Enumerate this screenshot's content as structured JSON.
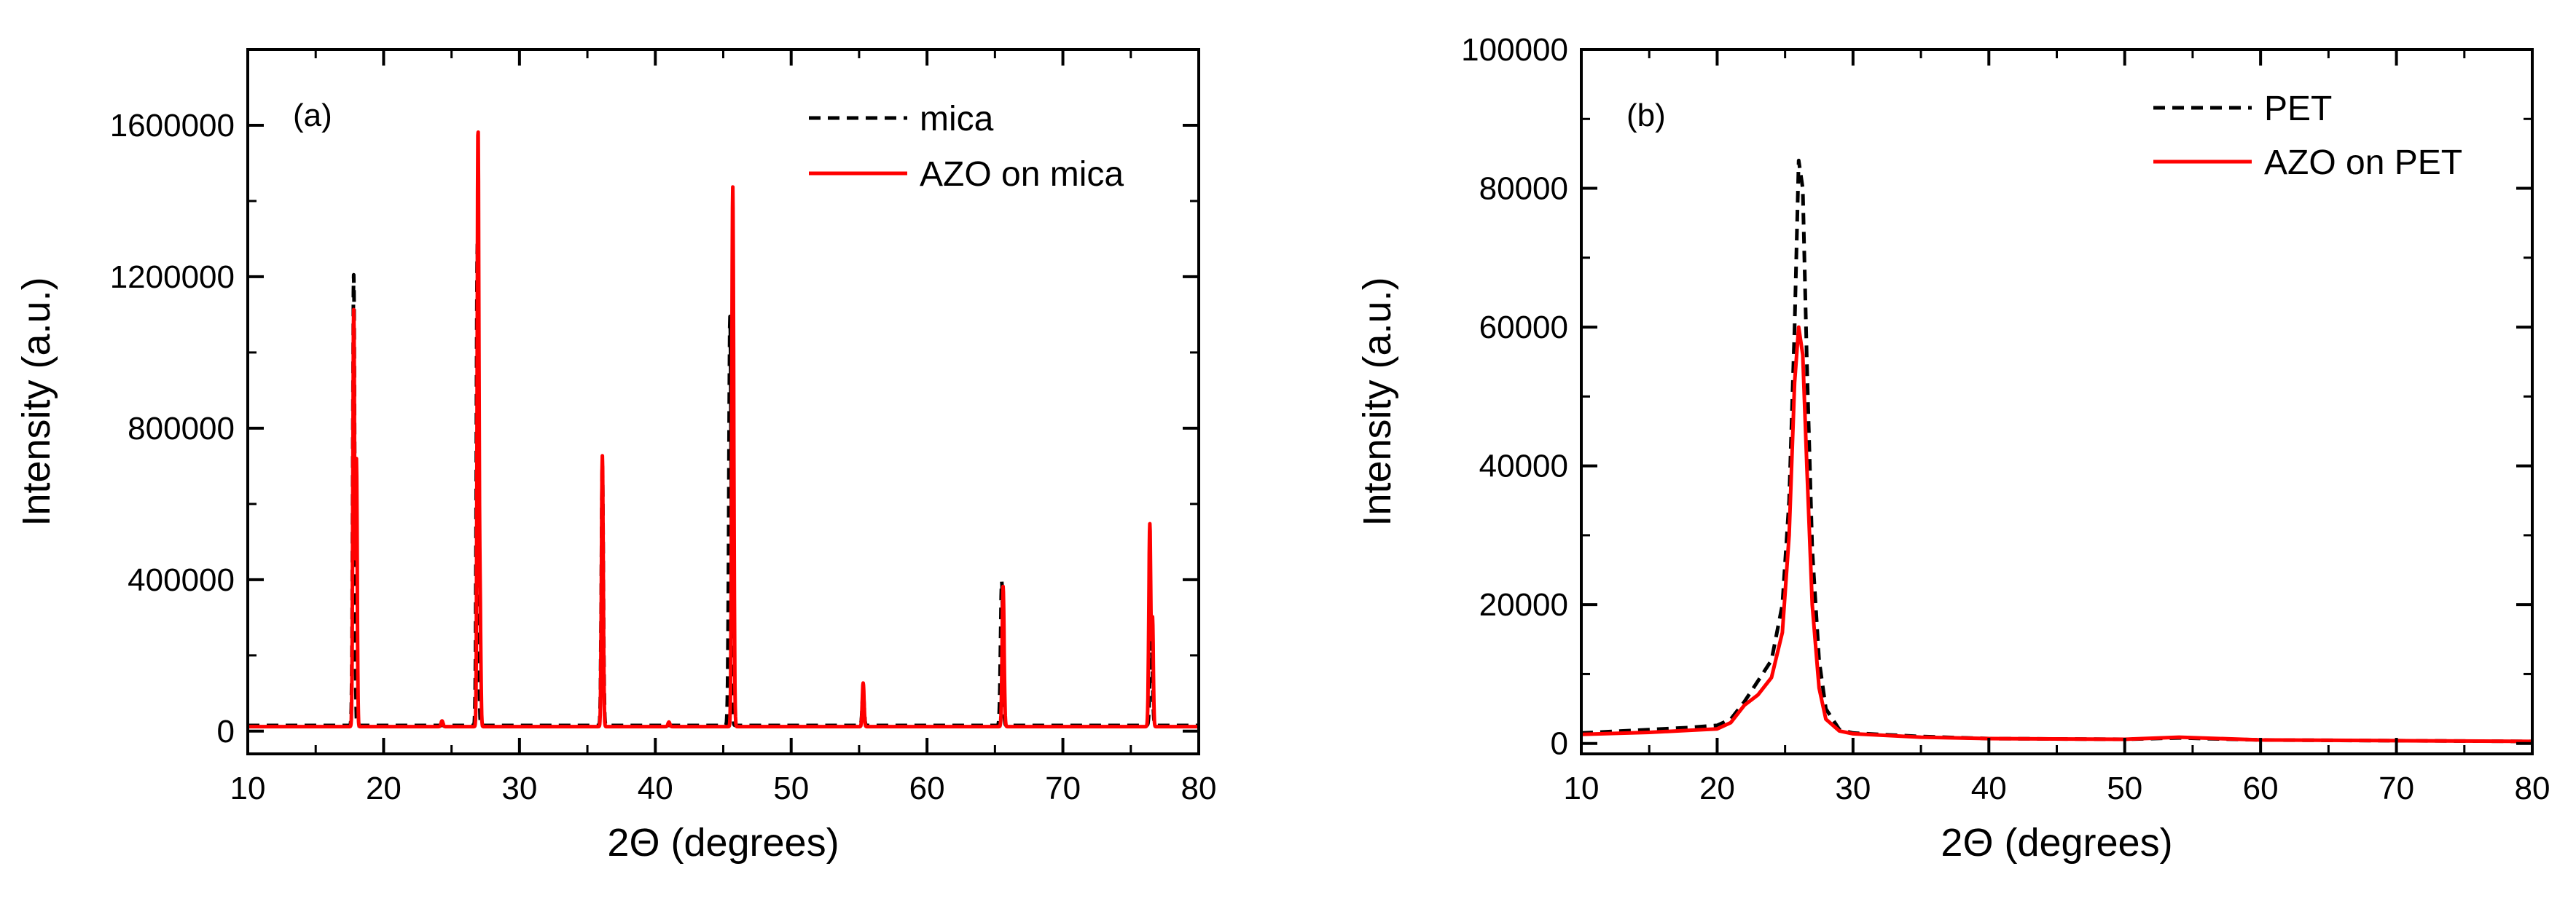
{
  "chart_data": [
    {
      "panel_label": "(a)",
      "type": "line",
      "xlabel": "2Θ (degrees)",
      "ylabel": "Intensity (a.u.)",
      "xlim": [
        10,
        80
      ],
      "ylim": [
        -60000,
        1800000
      ],
      "xticks": [
        10,
        20,
        30,
        40,
        50,
        60,
        70,
        80
      ],
      "yticks": [
        0,
        400000,
        800000,
        1200000,
        1600000
      ],
      "xtick_labels": [
        "10",
        "20",
        "30",
        "40",
        "50",
        "60",
        "70",
        "80"
      ],
      "ytick_labels": [
        "0",
        "400000",
        "800000",
        "1200000",
        "1600000"
      ],
      "legend_position": "top-right",
      "series": [
        {
          "name": "mica",
          "color": "#000000",
          "style": "dashed",
          "baseline": 15000,
          "peaks": [
            {
              "x": 17.8,
              "y": 1190000,
              "w": 0.1
            },
            {
              "x": 26.9,
              "y": 1270000,
              "w": 0.1
            },
            {
              "x": 36.1,
              "y": 690000,
              "w": 0.1
            },
            {
              "x": 45.5,
              "y": 1080000,
              "w": 0.12
            },
            {
              "x": 55.3,
              "y": 90000,
              "w": 0.1
            },
            {
              "x": 65.5,
              "y": 380000,
              "w": 0.12
            },
            {
              "x": 76.5,
              "y": 270000,
              "w": 0.12
            }
          ]
        },
        {
          "name": "AZO on mica",
          "color": "#ff0000",
          "style": "solid",
          "baseline": 12000,
          "peaks": [
            {
              "x": 17.8,
              "y": 1100000,
              "w": 0.09
            },
            {
              "x": 18.0,
              "y": 700000,
              "w": 0.08
            },
            {
              "x": 26.95,
              "y": 1575000,
              "w": 0.09
            },
            {
              "x": 27.1,
              "y": 300000,
              "w": 0.08
            },
            {
              "x": 36.1,
              "y": 715000,
              "w": 0.09
            },
            {
              "x": 45.7,
              "y": 1425000,
              "w": 0.1
            },
            {
              "x": 55.3,
              "y": 115000,
              "w": 0.09
            },
            {
              "x": 65.6,
              "y": 370000,
              "w": 0.1
            },
            {
              "x": 76.4,
              "y": 535000,
              "w": 0.1
            },
            {
              "x": 76.6,
              "y": 280000,
              "w": 0.08
            },
            {
              "x": 24.3,
              "y": 15000,
              "w": 0.1
            },
            {
              "x": 41.0,
              "y": 12000,
              "w": 0.1
            }
          ]
        }
      ]
    },
    {
      "panel_label": "(b)",
      "type": "line",
      "xlabel": "2Θ (degrees)",
      "ylabel": "Intensity (a.u.)",
      "xlim": [
        10,
        80
      ],
      "ylim": [
        -1500,
        100000
      ],
      "xticks": [
        10,
        20,
        30,
        40,
        50,
        60,
        70,
        80
      ],
      "yticks": [
        0,
        20000,
        40000,
        60000,
        80000,
        100000
      ],
      "xtick_labels": [
        "10",
        "20",
        "30",
        "40",
        "50",
        "60",
        "70",
        "80"
      ],
      "ytick_labels": [
        "0",
        "20000",
        "40000",
        "60000",
        "80000",
        "100000"
      ],
      "legend_position": "top-right",
      "series": [
        {
          "name": "PET",
          "color": "#000000",
          "style": "dashed",
          "points": [
            [
              10,
              1500
            ],
            [
              15,
              2000
            ],
            [
              18,
              2300
            ],
            [
              20,
              2600
            ],
            [
              21,
              3500
            ],
            [
              22,
              6000
            ],
            [
              23,
              9000
            ],
            [
              24,
              12000
            ],
            [
              24.8,
              20000
            ],
            [
              25.3,
              35000
            ],
            [
              25.7,
              60000
            ],
            [
              26.0,
              84000
            ],
            [
              26.3,
              80000
            ],
            [
              26.6,
              55000
            ],
            [
              27.0,
              28000
            ],
            [
              27.5,
              12000
            ],
            [
              28.0,
              5000
            ],
            [
              29,
              2000
            ],
            [
              30,
              1500
            ],
            [
              35,
              1000
            ],
            [
              40,
              700
            ],
            [
              50,
              600
            ],
            [
              54,
              800
            ],
            [
              60,
              500
            ],
            [
              70,
              400
            ],
            [
              80,
              300
            ]
          ]
        },
        {
          "name": "AZO on PET",
          "color": "#ff0000",
          "style": "solid",
          "points": [
            [
              10,
              1300
            ],
            [
              15,
              1600
            ],
            [
              18,
              1900
            ],
            [
              20,
              2100
            ],
            [
              21,
              3000
            ],
            [
              22,
              5500
            ],
            [
              23,
              7000
            ],
            [
              24,
              9500
            ],
            [
              24.8,
              16000
            ],
            [
              25.3,
              30000
            ],
            [
              25.7,
              52000
            ],
            [
              26.0,
              60000
            ],
            [
              26.3,
              56000
            ],
            [
              26.6,
              40000
            ],
            [
              27.0,
              20000
            ],
            [
              27.5,
              8000
            ],
            [
              28.0,
              3500
            ],
            [
              29,
              1800
            ],
            [
              30,
              1400
            ],
            [
              35,
              900
            ],
            [
              40,
              700
            ],
            [
              50,
              600
            ],
            [
              54,
              900
            ],
            [
              60,
              500
            ],
            [
              70,
              400
            ],
            [
              80,
              300
            ]
          ]
        }
      ]
    }
  ]
}
